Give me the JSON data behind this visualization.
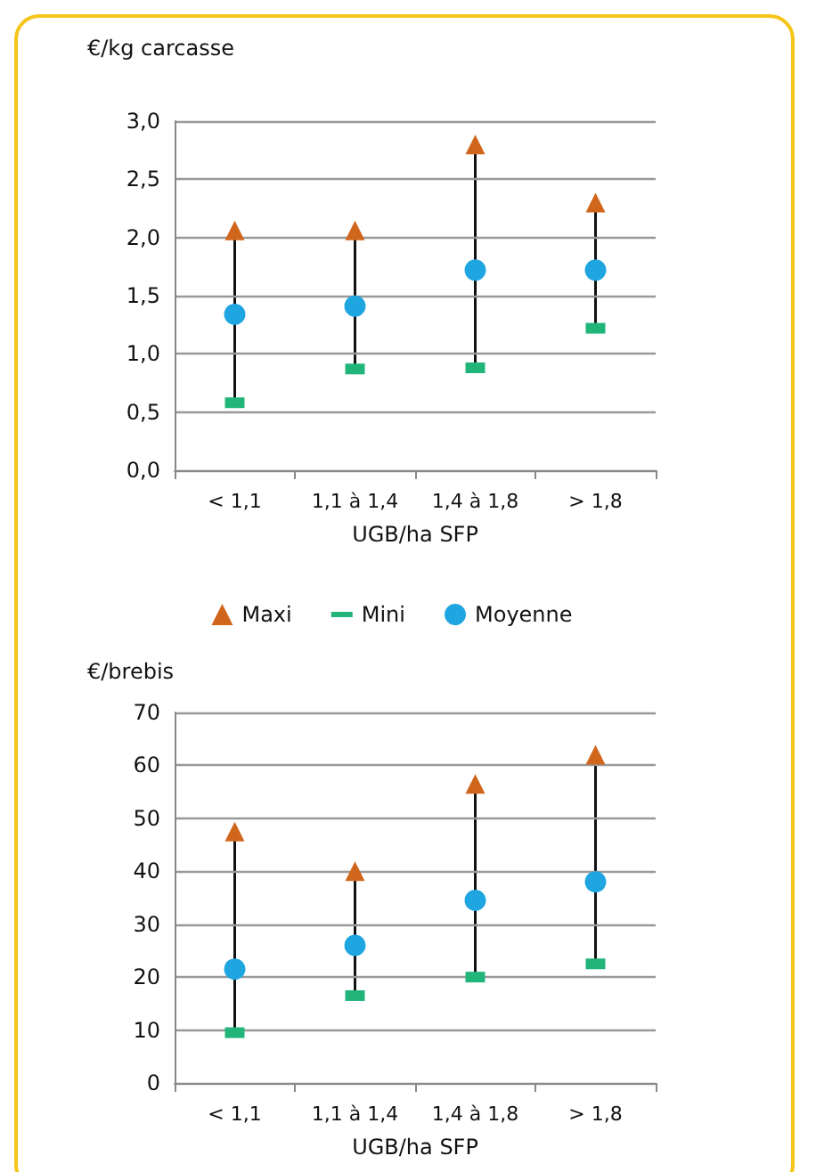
{
  "chart_data": [
    {
      "type": "scatter",
      "ylabel": "€/kg carcasse",
      "xlabel": "UGB/ha SFP",
      "categories": [
        "< 1,1",
        "1,1 à 1,4",
        "1,4 à 1,8",
        "> 1,8"
      ],
      "ylim": [
        0,
        3
      ],
      "yticks": [
        {
          "value": 0,
          "label": "0,0"
        },
        {
          "value": 0.5,
          "label": "0,5"
        },
        {
          "value": 1,
          "label": "1,0"
        },
        {
          "value": 1.5,
          "label": "1,5"
        },
        {
          "value": 2,
          "label": "2,0"
        },
        {
          "value": 2.5,
          "label": "2,5"
        },
        {
          "value": 3,
          "label": "3,0"
        }
      ],
      "grid": "y",
      "legend": "bottom",
      "series": [
        {
          "name": "Maxi",
          "color": "#d0661c",
          "marker": "triangle",
          "values": [
            2.06,
            2.06,
            2.8,
            2.3
          ]
        },
        {
          "name": "Mini",
          "color": "#22b57a",
          "marker": "square",
          "values": [
            0.58,
            0.87,
            0.88,
            1.22
          ]
        },
        {
          "name": "Moyenne",
          "color": "#1fa5e0",
          "marker": "circle",
          "values": [
            1.34,
            1.41,
            1.72,
            1.72
          ]
        }
      ]
    },
    {
      "type": "scatter",
      "ylabel": "€/brebis",
      "xlabel": "UGB/ha SFP",
      "categories": [
        "< 1,1",
        "1,1 à 1,4",
        "1,4 à 1,8",
        "> 1,8"
      ],
      "ylim": [
        0,
        70
      ],
      "yticks": [
        0,
        10,
        20,
        30,
        40,
        50,
        60,
        70
      ],
      "grid": "y",
      "series": [
        {
          "color": "#d0661c",
          "marker": "triangle",
          "values": [
            47.5,
            40,
            56.5,
            62
          ]
        },
        {
          "color": "#22b57a",
          "marker": "square",
          "values": [
            9.5,
            16.5,
            20,
            22.5
          ]
        },
        {
          "color": "#1fa5e0",
          "marker": "circle",
          "values": [
            21.5,
            26,
            34.5,
            38
          ]
        }
      ]
    }
  ]
}
